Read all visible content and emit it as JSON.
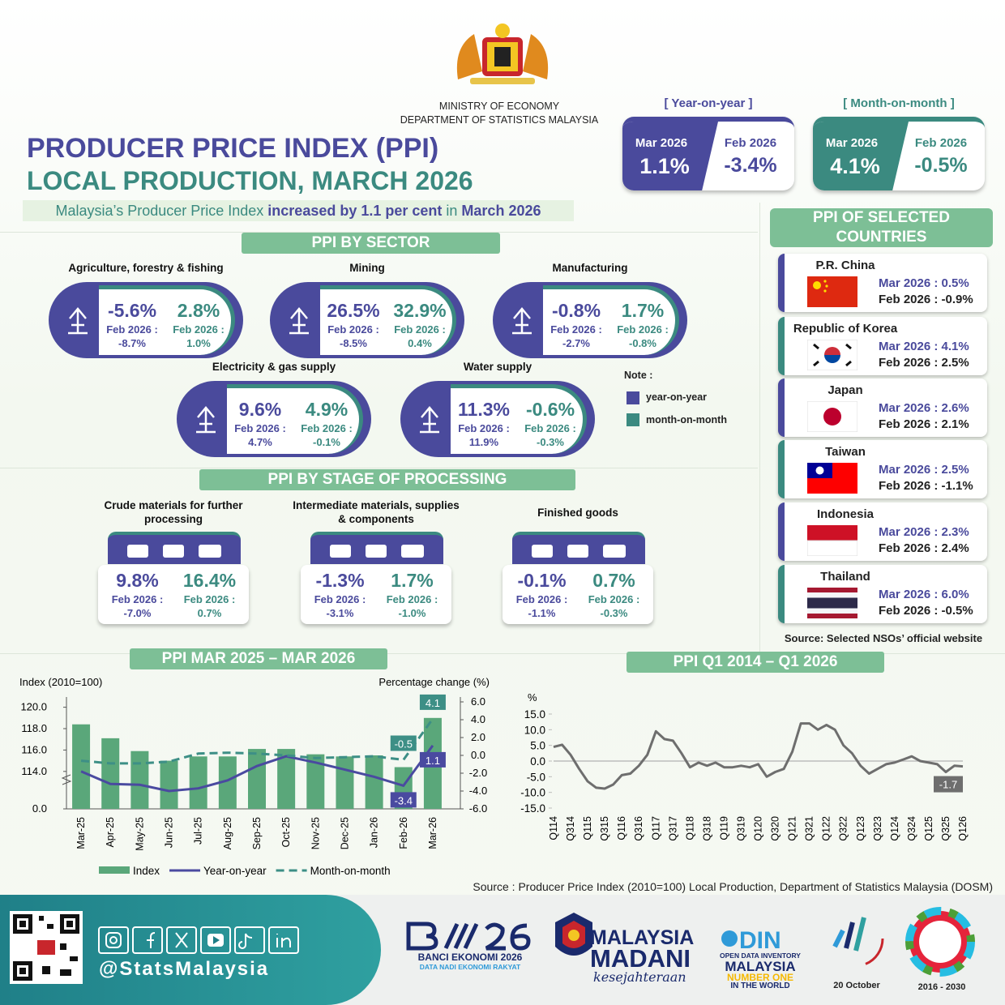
{
  "header": {
    "ministry": "MINISTRY OF ECONOMY",
    "department": "DEPARTMENT OF STATISTICS MALAYSIA",
    "title": "PRODUCER PRICE INDEX (PPI)",
    "subtitle": "LOCAL PRODUCTION, MARCH 2026",
    "summary": [
      "Malaysia’s Producer Price Index ",
      "increased by 1.1 per cent",
      " in ",
      "March 2026"
    ]
  },
  "headline": [
    {
      "label": "[ Year-on-year ]",
      "current_period": "Mar 2026",
      "current": "1.1%",
      "previous_period": "Feb 2026",
      "previous": "-3.4%"
    },
    {
      "label": "[ Month-on-month ]",
      "current_period": "Mar 2026",
      "current": "4.1%",
      "previous_period": "Feb 2026",
      "previous": "-0.5%"
    }
  ],
  "sector": {
    "title": "PPI BY SECTOR",
    "items": [
      {
        "name": "Agriculture, forestry & fishing",
        "yoy": "-5.6%",
        "mom": "2.8%",
        "yoy_prev_label": "Feb 2026 :",
        "yoy_prev": "-8.7%",
        "mom_prev_label": "Feb 2026 :",
        "mom_prev": "1.0%"
      },
      {
        "name": "Mining",
        "yoy": "26.5%",
        "mom": "32.9%",
        "yoy_prev_label": "Feb 2026 :",
        "yoy_prev": "-8.5%",
        "mom_prev_label": "Feb 2026 :",
        "mom_prev": "0.4%"
      },
      {
        "name": "Manufacturing",
        "yoy": "-0.8%",
        "mom": "1.7%",
        "yoy_prev_label": "Feb 2026 :",
        "yoy_prev": "-2.7%",
        "mom_prev_label": "Feb 2026 :",
        "mom_prev": "-0.8%"
      },
      {
        "name": "Electricity & gas supply",
        "yoy": "9.6%",
        "mom": "4.9%",
        "yoy_prev_label": "Feb 2026 :",
        "yoy_prev": "4.7%",
        "mom_prev_label": "Feb 2026 :",
        "mom_prev": "-0.1%"
      },
      {
        "name": "Water supply",
        "yoy": "11.3%",
        "mom": "-0.6%",
        "yoy_prev_label": "Feb 2026 :",
        "yoy_prev": "11.9%",
        "mom_prev_label": "Feb 2026 :",
        "mom_prev": "-0.3%"
      }
    ]
  },
  "note": {
    "title": "Note :",
    "yoy": "year-on-year",
    "mom": "month-on-month"
  },
  "stage": {
    "title": "PPI BY STAGE OF PROCESSING",
    "items": [
      {
        "name": "Crude materials for further processing",
        "yoy": "9.8%",
        "mom": "16.4%",
        "yoy_prev_label": "Feb 2026 :",
        "yoy_prev": "-7.0%",
        "mom_prev_label": "Feb 2026 :",
        "mom_prev": "0.7%"
      },
      {
        "name": "Intermediate materials, supplies & components",
        "yoy": "-1.3%",
        "mom": "1.7%",
        "yoy_prev_label": "Feb 2026 :",
        "yoy_prev": "-3.1%",
        "mom_prev_label": "Feb 2026 :",
        "mom_prev": "-1.0%"
      },
      {
        "name": "Finished goods",
        "yoy": "-0.1%",
        "mom": "0.7%",
        "yoy_prev_label": "Feb 2026 :",
        "yoy_prev": "-1.1%",
        "mom_prev_label": "Feb 2026 :",
        "mom_prev": "-0.3%"
      }
    ]
  },
  "countries": {
    "title": "PPI OF SELECTED COUNTRIES",
    "items": [
      {
        "name": "P.R. China",
        "current": "Mar 2026 : 0.5%",
        "previous": "Feb 2026 : -0.9%"
      },
      {
        "name": "Republic of Korea",
        "current": "Mar 2026 : 4.1%",
        "previous": "Feb 2026 : 2.5%"
      },
      {
        "name": "Japan",
        "current": "Mar 2026 : 2.6%",
        "previous": "Feb 2026 : 2.1%"
      },
      {
        "name": "Taiwan",
        "current": "Mar 2026 : 2.5%",
        "previous": "Feb 2026 : -1.1%"
      },
      {
        "name": "Indonesia",
        "current": "Mar 2026 : 2.3%",
        "previous": "Feb 2026 : 2.4%"
      },
      {
        "name": "Thailand",
        "current": "Mar 2026 : 6.0%",
        "previous": "Feb 2026 : -0.5%"
      }
    ],
    "source": "Source: Selected NSOs’ official website"
  },
  "chart_data": [
    {
      "type": "bar_line",
      "title": "PPI MAR 2025 – MAR 2026",
      "y_label": "Index (2010=100)",
      "y2_label": "Percentage change (%)",
      "categories": [
        "Mar-25",
        "Apr-25",
        "May-25",
        "Jun-25",
        "Jul-25",
        "Aug-25",
        "Sep-25",
        "Oct-25",
        "Nov-25",
        "Dec-25",
        "Jan-26",
        "Feb-26",
        "Mar-26"
      ],
      "series": [
        {
          "name": "Index",
          "type": "bar",
          "color": "#5aa77a",
          "values": [
            118.4,
            117.1,
            115.9,
            115.0,
            115.4,
            115.4,
            116.1,
            116.1,
            115.6,
            115.4,
            115.5,
            114.4,
            119.0
          ]
        },
        {
          "name": "Year-on-year",
          "type": "line",
          "axis": "y2",
          "color": "#4a4aa0",
          "values": [
            -1.8,
            -3.2,
            -3.3,
            -4.0,
            -3.7,
            -2.8,
            -1.2,
            -0.1,
            -0.8,
            -1.6,
            -2.4,
            -3.4,
            1.1
          ],
          "value_labels": [
            null,
            null,
            null,
            null,
            null,
            null,
            null,
            null,
            null,
            null,
            null,
            "-3.4",
            "1.1"
          ]
        },
        {
          "name": "Month-on-month",
          "type": "line",
          "axis": "y2",
          "dashed": true,
          "color": "#3d8f86",
          "values": [
            -0.6,
            -0.9,
            -0.9,
            -0.7,
            0.2,
            0.3,
            0.2,
            0.0,
            -0.3,
            -0.2,
            -0.1,
            -0.5,
            4.1
          ],
          "value_labels": [
            null,
            null,
            null,
            null,
            null,
            null,
            null,
            null,
            null,
            null,
            null,
            "-0.5",
            "4.1"
          ]
        }
      ],
      "ylim": [
        0,
        120.5
      ],
      "axis_break": [
        0,
        110.5
      ],
      "yticks": [
        {
          "value": 0,
          "label": "0.0"
        },
        {
          "value": 114,
          "label": "114.0"
        },
        {
          "value": 116,
          "label": "116.0"
        },
        {
          "value": 118,
          "label": "118.0"
        },
        {
          "value": 120,
          "label": "120.0"
        }
      ],
      "y2lim": [
        -6,
        6
      ],
      "y2ticks": [
        {
          "value": 6,
          "label": "6.0"
        },
        {
          "value": 4,
          "label": "4.0"
        },
        {
          "value": 2,
          "label": "2.0"
        },
        {
          "value": 0,
          "label": "0.0"
        },
        {
          "value": -2,
          "label": "-2.0"
        },
        {
          "value": -4,
          "label": "-4.0"
        },
        {
          "value": -6,
          "label": "-6.0"
        }
      ],
      "legend": "bottom"
    },
    {
      "type": "line",
      "title": "PPI Q1 2014 – Q1 2026",
      "y_label": "%",
      "color": "#6e6e6e",
      "categories": [
        "Q114",
        null,
        "Q314",
        null,
        "Q115",
        null,
        "Q315",
        null,
        "Q116",
        null,
        "Q316",
        null,
        "Q117",
        null,
        "Q317",
        null,
        "Q118",
        null,
        "Q318",
        null,
        "Q119",
        null,
        "Q319",
        null,
        "Q120",
        null,
        "Q320",
        null,
        "Q121",
        null,
        "Q321",
        null,
        "Q122",
        null,
        "Q322",
        null,
        "Q123",
        null,
        "Q323",
        null,
        "Q124",
        null,
        "Q324",
        null,
        "Q125",
        null,
        "Q325",
        null,
        "Q126"
      ],
      "values": [
        4.5,
        5.2,
        2.0,
        -2.5,
        -6.5,
        -8.5,
        -8.8,
        -7.5,
        -4.5,
        -4.0,
        -1.5,
        2.0,
        9.5,
        7.0,
        6.5,
        2.5,
        -2.0,
        -0.5,
        -1.5,
        -0.5,
        -2.0,
        -2.0,
        -1.5,
        -2.0,
        -1.0,
        -5.0,
        -3.5,
        -2.5,
        3.0,
        12.0,
        12.0,
        10.0,
        11.5,
        10.0,
        5.0,
        2.5,
        -1.5,
        -4.0,
        -2.5,
        -1.0,
        -0.5,
        0.5,
        1.5,
        0.0,
        -0.5,
        -1.0,
        -3.5,
        -1.5,
        -1.7
      ],
      "value_labels": [
        null,
        null,
        null,
        null,
        null,
        null,
        null,
        null,
        null,
        null,
        null,
        null,
        null,
        null,
        null,
        null,
        null,
        null,
        null,
        null,
        null,
        null,
        null,
        null,
        null,
        null,
        null,
        null,
        null,
        null,
        null,
        null,
        null,
        null,
        null,
        null,
        null,
        null,
        null,
        null,
        null,
        null,
        null,
        null,
        null,
        null,
        null,
        null,
        "-1.7"
      ],
      "ylim": [
        -15,
        15
      ],
      "yticks": [
        {
          "value": 15,
          "label": "15.0"
        },
        {
          "value": 10,
          "label": "10.0"
        },
        {
          "value": 5,
          "label": "5.0"
        },
        {
          "value": 0,
          "label": "0.0"
        },
        {
          "value": -5,
          "label": "-5.0"
        },
        {
          "value": -10,
          "label": "-10.0"
        },
        {
          "value": -15,
          "label": "-15.0"
        }
      ]
    }
  ],
  "source": "Source : Producer Price Index (2010=100) Local Production, Department of Statistics Malaysia (DOSM)",
  "footer": {
    "handle": "@StatsMalaysia",
    "logos": [
      "BANCI EKONOMI 2026",
      "DATA NADI EKONOMI RAKYAT",
      "MALAYSIA",
      "MADANI",
      "kesejahteraan",
      "OPEN DATA INVENTORY",
      "MALAYSIA",
      "NUMBER ONE",
      "IN THE WORLD",
      "20 October",
      "2016 - 2030"
    ]
  }
}
